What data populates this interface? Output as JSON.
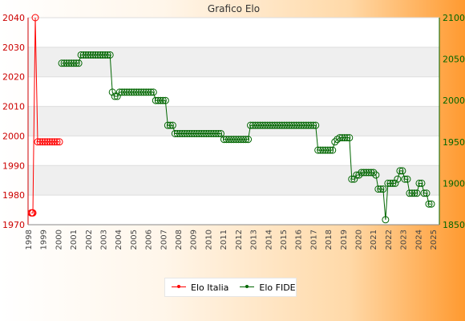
{
  "chart_data": {
    "type": "line",
    "title": "Grafico Elo",
    "grid": true,
    "legend_position": "bottom-center",
    "x": [
      "1998",
      "1999",
      "2000",
      "2001",
      "2002",
      "2003",
      "2004",
      "2005",
      "2006",
      "2007",
      "2008",
      "2009",
      "2010",
      "2011",
      "2012",
      "2013",
      "2014",
      "2015",
      "2016",
      "2017",
      "2018",
      "2019",
      "2020",
      "2021",
      "2022",
      "2023",
      "2024",
      "2025"
    ],
    "left_axis": {
      "ylim": [
        1970,
        2040
      ],
      "ticks": [
        1970,
        1980,
        1990,
        2000,
        2010,
        2020,
        2030,
        2040
      ]
    },
    "right_axis": {
      "ylim": [
        1850,
        2100
      ],
      "ticks": [
        1850,
        1900,
        1950,
        2000,
        2050,
        2100
      ]
    },
    "series": [
      {
        "name": "Elo Italia",
        "axis": "left",
        "color": "#ff0000",
        "points": [
          [
            1998.0,
            1974
          ],
          [
            1998.1,
            1974
          ],
          [
            1998.2,
            1974
          ],
          [
            1998.5,
            2040
          ],
          [
            1998.8,
            1998
          ],
          [
            1999.1,
            1998
          ],
          [
            1999.4,
            1998
          ],
          [
            1999.7,
            1998
          ],
          [
            2000.0,
            1998
          ],
          [
            2000.3,
            1998
          ],
          [
            2000.6,
            1998
          ],
          [
            2000.9,
            1998
          ],
          [
            2001.2,
            1998
          ],
          [
            2001.5,
            1998
          ]
        ]
      },
      {
        "name": "Elo FIDE",
        "axis": "right",
        "color": "#006600",
        "points": [
          [
            2001.8,
            2045
          ],
          [
            2002.1,
            2045
          ],
          [
            2002.4,
            2045
          ],
          [
            2002.7,
            2045
          ],
          [
            2003.0,
            2045
          ],
          [
            2003.3,
            2045
          ],
          [
            2003.6,
            2045
          ],
          [
            2003.9,
            2045
          ],
          [
            2004.2,
            2055
          ],
          [
            2004.5,
            2055
          ],
          [
            2004.8,
            2055
          ],
          [
            2005.1,
            2055
          ],
          [
            2005.4,
            2055
          ],
          [
            2005.7,
            2055
          ],
          [
            2006.0,
            2055
          ],
          [
            2006.3,
            2055
          ],
          [
            2006.6,
            2055
          ],
          [
            2006.9,
            2055
          ],
          [
            2007.2,
            2055
          ],
          [
            2007.5,
            2055
          ],
          [
            2007.8,
            2055
          ],
          [
            2008.1,
            2010
          ],
          [
            2008.4,
            2005
          ],
          [
            2008.7,
            2005
          ],
          [
            2009.0,
            2010
          ],
          [
            2009.3,
            2010
          ],
          [
            2009.6,
            2010
          ],
          [
            2009.9,
            2010
          ],
          [
            2010.2,
            2010
          ],
          [
            2010.5,
            2010
          ],
          [
            2010.8,
            2010
          ],
          [
            2011.1,
            2010
          ],
          [
            2011.4,
            2010
          ],
          [
            2011.7,
            2010
          ],
          [
            2012.0,
            2010
          ],
          [
            2012.3,
            2010
          ],
          [
            2012.6,
            2010
          ],
          [
            2012.9,
            2010
          ],
          [
            2013.2,
            2010
          ],
          [
            2013.5,
            2000
          ],
          [
            2013.8,
            2000
          ],
          [
            2014.1,
            2000
          ],
          [
            2014.4,
            2000
          ],
          [
            2014.7,
            2000
          ],
          [
            2015.0,
            1970
          ],
          [
            2015.3,
            1970
          ],
          [
            2015.6,
            1970
          ],
          [
            2015.9,
            1960
          ],
          [
            2016.2,
            1960
          ],
          [
            2016.5,
            1960
          ],
          [
            2016.8,
            1960
          ],
          [
            2017.1,
            1960
          ],
          [
            2017.4,
            1960
          ],
          [
            2017.7,
            1960
          ],
          [
            2018.0,
            1960
          ],
          [
            2018.3,
            1960
          ],
          [
            2018.6,
            1960
          ],
          [
            2018.9,
            1960
          ],
          [
            2019.2,
            1960
          ],
          [
            2019.5,
            1960
          ],
          [
            2019.8,
            1960
          ],
          [
            2020.1,
            1960
          ],
          [
            2020.4,
            1960
          ],
          [
            2020.7,
            1960
          ],
          [
            2021.0,
            1960
          ],
          [
            2021.3,
            1960
          ],
          [
            2021.6,
            1960
          ],
          [
            2022.0,
            1953
          ],
          [
            2022.3,
            1953
          ],
          [
            2022.6,
            1953
          ],
          [
            2022.9,
            1953
          ],
          [
            2023.2,
            1953
          ],
          [
            2023.5,
            1953
          ],
          [
            2023.8,
            1953
          ],
          [
            2024.1,
            1953
          ],
          [
            2024.4,
            1953
          ],
          [
            2024.7,
            1953
          ],
          [
            2025.0,
            1953
          ],
          [
            2025.3,
            1970
          ],
          [
            2025.6,
            1970
          ],
          [
            2025.9,
            1970
          ],
          [
            2026.2,
            1970
          ],
          [
            2026.5,
            1970
          ],
          [
            2026.8,
            1970
          ],
          [
            2027.1,
            1970
          ],
          [
            2027.4,
            1970
          ],
          [
            2027.7,
            1970
          ],
          [
            2028.0,
            1970
          ],
          [
            2028.3,
            1970
          ],
          [
            2028.6,
            1970
          ],
          [
            2028.9,
            1970
          ],
          [
            2029.2,
            1970
          ],
          [
            2029.5,
            1970
          ],
          [
            2029.8,
            1970
          ],
          [
            2030.1,
            1970
          ],
          [
            2030.4,
            1970
          ],
          [
            2030.7,
            1970
          ],
          [
            2031.0,
            1970
          ],
          [
            2031.3,
            1970
          ],
          [
            2031.6,
            1970
          ],
          [
            2031.9,
            1970
          ],
          [
            2032.2,
            1970
          ],
          [
            2032.5,
            1970
          ],
          [
            2032.8,
            1970
          ],
          [
            2033.1,
            1970
          ],
          [
            2033.4,
            1970
          ],
          [
            2033.7,
            1940
          ],
          [
            2034.0,
            1940
          ],
          [
            2034.3,
            1940
          ],
          [
            2034.6,
            1940
          ],
          [
            2034.9,
            1940
          ],
          [
            2035.2,
            1940
          ],
          [
            2035.5,
            1940
          ],
          [
            2035.8,
            1950
          ],
          [
            2036.1,
            1953
          ],
          [
            2036.4,
            1955
          ],
          [
            2036.7,
            1955
          ],
          [
            2037.0,
            1955
          ],
          [
            2037.3,
            1955
          ],
          [
            2037.6,
            1955
          ],
          [
            2037.9,
            1905
          ],
          [
            2038.2,
            1905
          ],
          [
            2038.5,
            1910
          ],
          [
            2038.8,
            1910
          ],
          [
            2039.1,
            1913
          ],
          [
            2039.4,
            1913
          ],
          [
            2039.7,
            1913
          ],
          [
            2040.0,
            1913
          ],
          [
            2040.3,
            1913
          ],
          [
            2040.6,
            1913
          ],
          [
            2040.9,
            1910
          ],
          [
            2041.2,
            1893
          ],
          [
            2041.5,
            1893
          ],
          [
            2041.8,
            1893
          ],
          [
            2042.1,
            1856
          ],
          [
            2042.4,
            1900
          ],
          [
            2042.7,
            1900
          ],
          [
            2043.0,
            1900
          ],
          [
            2043.3,
            1900
          ],
          [
            2043.6,
            1905
          ],
          [
            2043.9,
            1915
          ],
          [
            2044.2,
            1915
          ],
          [
            2044.5,
            1905
          ],
          [
            2044.8,
            1905
          ],
          [
            2045.1,
            1888
          ],
          [
            2045.4,
            1888
          ],
          [
            2045.7,
            1888
          ],
          [
            2046.0,
            1888
          ],
          [
            2046.3,
            1900
          ],
          [
            2046.6,
            1900
          ],
          [
            2046.9,
            1888
          ],
          [
            2047.2,
            1888
          ],
          [
            2047.5,
            1875
          ],
          [
            2047.8,
            1875
          ]
        ]
      }
    ]
  }
}
